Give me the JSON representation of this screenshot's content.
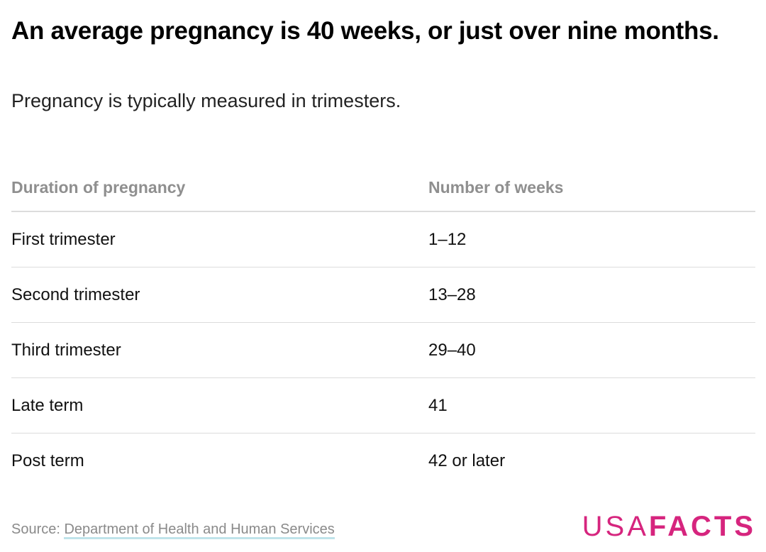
{
  "chart_data": {
    "type": "table",
    "title": "An average pregnancy is 40 weeks, or just over nine months.",
    "subtitle": "Pregnancy is typically measured in trimesters.",
    "columns": [
      "Duration of pregnancy",
      "Number of weeks"
    ],
    "rows": [
      {
        "duration": "First trimester",
        "weeks": "1–12"
      },
      {
        "duration": "Second trimester",
        "weeks": "13–28"
      },
      {
        "duration": "Third trimester",
        "weeks": "29–40"
      },
      {
        "duration": "Late term",
        "weeks": "41"
      },
      {
        "duration": "Post term",
        "weeks": "42 or later"
      }
    ]
  },
  "footer": {
    "source_prefix": "Source: ",
    "source_link": "Department of Health and Human Services",
    "logo_usa": "USA",
    "logo_facts": "FACTS"
  },
  "colors": {
    "brand": "#d6257e",
    "header_text": "#8f8f8f",
    "divider": "#dcdcdc",
    "link_underline": "#bfe3ea"
  }
}
